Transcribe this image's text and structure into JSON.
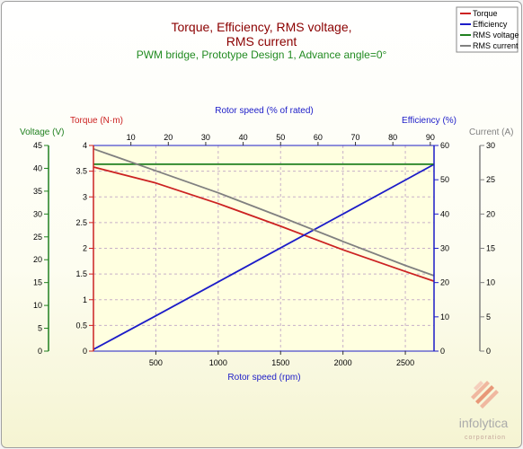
{
  "title": {
    "line1": "Torque, Efficiency, RMS voltage,",
    "line2": "RMS current"
  },
  "subtitle": "PWM bridge, Prototype Design 1, Advance angle=0°",
  "legend": [
    {
      "name": "Torque",
      "color": "#cc2222"
    },
    {
      "name": "Efficiency",
      "color": "#1c1cc8"
    },
    {
      "name": "RMS voltage",
      "color": "#208020"
    },
    {
      "name": "RMS current",
      "color": "#808080"
    }
  ],
  "axes": {
    "x_bottom": {
      "label": "Rotor speed (rpm)",
      "range": [
        0,
        2730
      ],
      "ticks": [
        500,
        1000,
        1500,
        2000,
        2500
      ],
      "color": "#1c1cc8"
    },
    "x_top": {
      "label": "Rotor speed (% of rated)",
      "range": [
        0,
        91
      ],
      "ticks": [
        10,
        20,
        30,
        40,
        50,
        60,
        70,
        80,
        90
      ],
      "color": "#1c1cc8"
    },
    "torque": {
      "label": "Torque (N·m)",
      "range": [
        0,
        4
      ],
      "ticks": [
        0,
        0.5,
        1,
        1.5,
        2,
        2.5,
        3,
        3.5,
        4
      ],
      "tick_labels": [
        "0",
        "0.5",
        "1",
        "1.5",
        "2",
        "2.5",
        "3",
        "3.5",
        "4"
      ],
      "color": "#cc2222"
    },
    "voltage": {
      "label": "Voltage (V)",
      "range": [
        0,
        45
      ],
      "ticks": [
        0,
        5,
        10,
        15,
        20,
        25,
        30,
        35,
        40,
        45
      ],
      "color": "#208020"
    },
    "efficiency": {
      "label": "Efficiency (%)",
      "range": [
        0,
        60
      ],
      "ticks": [
        0,
        10,
        20,
        30,
        40,
        50,
        60
      ],
      "color": "#1c1cc8"
    },
    "current": {
      "label": "Current (A)",
      "range": [
        0,
        30
      ],
      "ticks": [
        0,
        5,
        10,
        15,
        20,
        25,
        30
      ],
      "color": "#808080"
    }
  },
  "chart_data": {
    "type": "line",
    "title": "Torque, Efficiency, RMS voltage, RMS current",
    "subtitle": "PWM bridge, Prototype Design 1, Advance angle=0°",
    "xlabel": "Rotor speed (rpm)",
    "x2label": "Rotor speed (% of rated)",
    "xlim": [
      0,
      2730
    ],
    "grid": true,
    "legend_position": "top-right",
    "x": [
      0,
      500,
      1000,
      1500,
      2000,
      2500,
      2730
    ],
    "series": [
      {
        "name": "Torque",
        "axis": "Torque (N·m)",
        "color": "#cc2222",
        "values": [
          3.58,
          3.27,
          2.87,
          2.43,
          1.97,
          1.55,
          1.36
        ]
      },
      {
        "name": "Efficiency",
        "axis": "Efficiency (%)",
        "color": "#1c1cc8",
        "values": [
          0.5,
          10.3,
          20.2,
          30.1,
          40.0,
          49.9,
          54.5
        ]
      },
      {
        "name": "RMS voltage",
        "axis": "Voltage (V)",
        "color": "#208020",
        "values": [
          40.9,
          40.9,
          40.9,
          40.9,
          40.9,
          40.9,
          40.9
        ]
      },
      {
        "name": "RMS current",
        "axis": "Current (A)",
        "color": "#808080",
        "values": [
          29.5,
          26.3,
          23.1,
          19.6,
          16.0,
          12.5,
          11.0
        ]
      }
    ]
  },
  "logo": {
    "name": "infolytica",
    "sub": "corporation",
    "color": "#e08060"
  }
}
